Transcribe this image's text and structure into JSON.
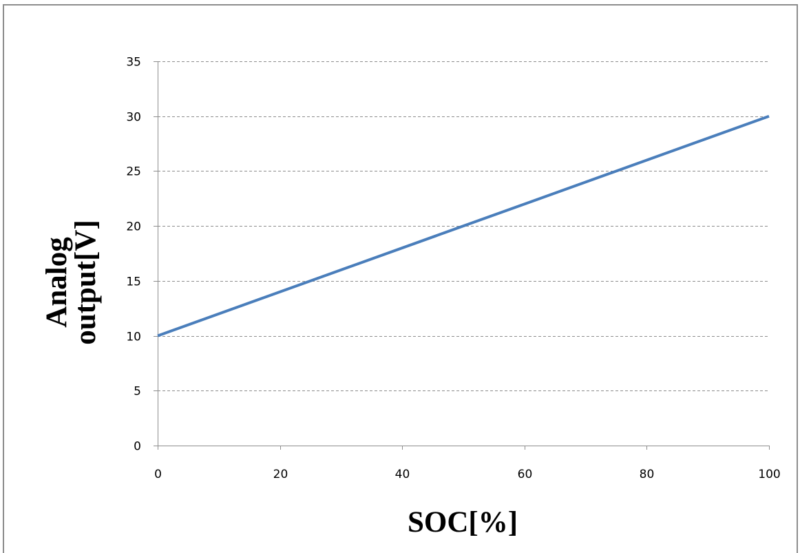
{
  "chart_data": {
    "type": "line",
    "title": "",
    "xlabel": "SOC[%]",
    "ylabel_lines": [
      "Analog",
      "output[V]"
    ],
    "xlim": [
      0,
      100
    ],
    "ylim": [
      0,
      35
    ],
    "x_ticks": [
      0,
      20,
      40,
      60,
      80,
      100
    ],
    "y_ticks": [
      0,
      5,
      10,
      15,
      20,
      25,
      30,
      35
    ],
    "grid": "horizontal-dashed",
    "legend": "none",
    "series": [
      {
        "color": "#4a7ebb",
        "x": [
          0,
          100
        ],
        "y": [
          10,
          30
        ]
      }
    ]
  }
}
